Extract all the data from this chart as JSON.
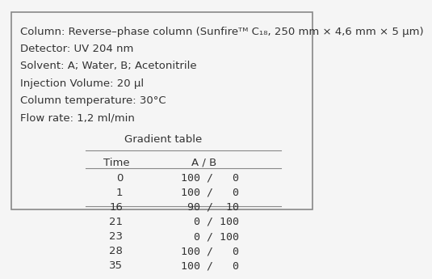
{
  "bg_color": "#f5f5f5",
  "border_color": "#888888",
  "text_color": "#333333",
  "header_lines": [
    "Column: Reverse–phase column (Sunfireᵀᴹ C₁₈, 250 mm × 4,6 mm × 5 μm)",
    "Detector: UV 204 nm",
    "Solvent: A; Water, B; Acetonitrile",
    "Injection Volume: 20 μl",
    "Column temperature: 30°C",
    "Flow rate: 1,2 ml/min"
  ],
  "table_title": "Gradient table",
  "col_headers": [
    "Time",
    "A / B"
  ],
  "table_data": [
    [
      "0",
      "100 /   0"
    ],
    [
      "1",
      "100 /   0"
    ],
    [
      "16",
      " 90 /  10"
    ],
    [
      "21",
      "  0 / 100"
    ],
    [
      "23",
      "  0 / 100"
    ],
    [
      "28",
      "100 /   0"
    ],
    [
      "35",
      "100 /   0"
    ]
  ],
  "font_size": 9.5,
  "font_family": "DejaVu Sans"
}
